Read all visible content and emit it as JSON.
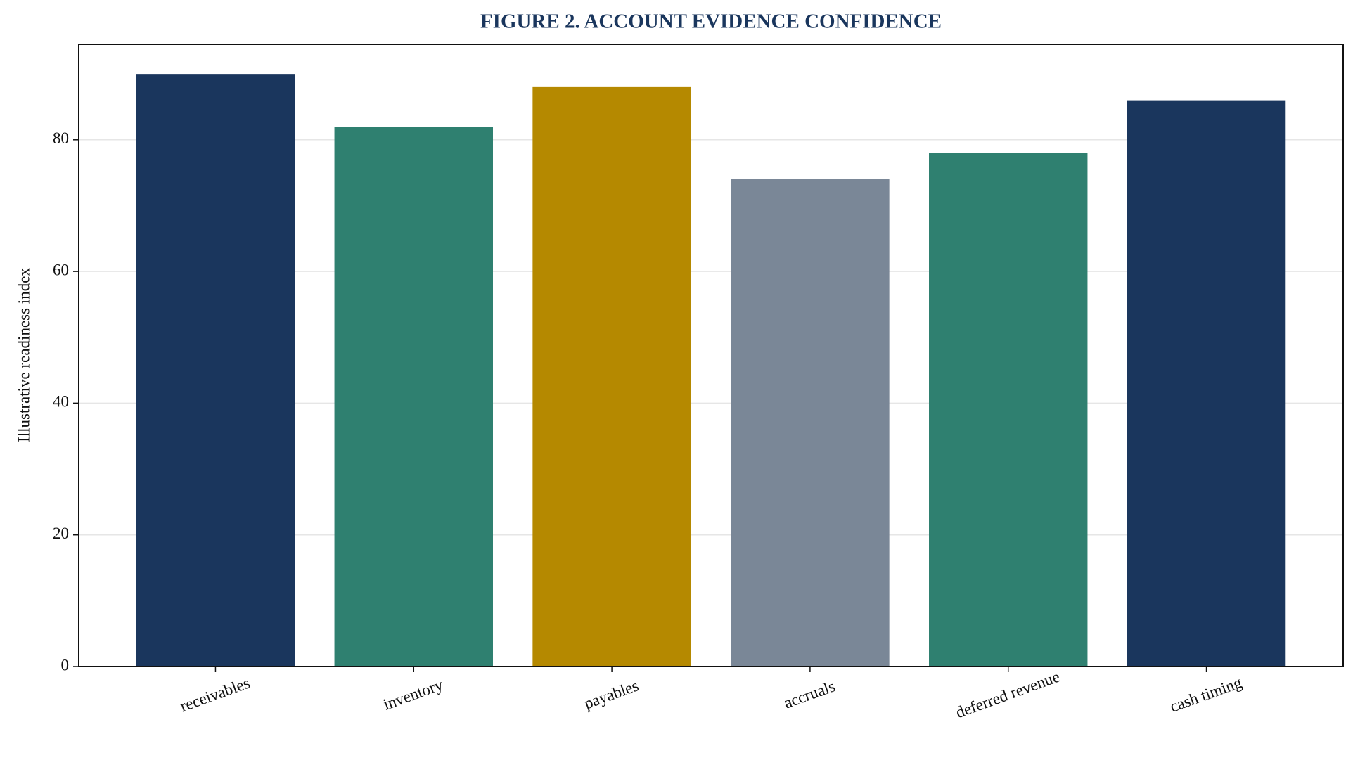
{
  "chart_data": {
    "type": "bar",
    "title": "FIGURE 2. ACCOUNT EVIDENCE CONFIDENCE",
    "y_label": "Illustrative readiness index",
    "categories": [
      "receivables",
      "inventory",
      "payables",
      "accruals",
      "deferred revenue",
      "cash timing"
    ],
    "values": [
      90,
      82,
      88,
      74,
      78,
      86
    ],
    "colors": [
      "#1a365d",
      "#2f8070",
      "#b58900",
      "#7a8797",
      "#2f8070",
      "#1a365d"
    ],
    "ylim": [
      0,
      94.5
    ],
    "yticks": [
      0,
      20,
      40,
      60,
      80
    ],
    "grid": true
  }
}
